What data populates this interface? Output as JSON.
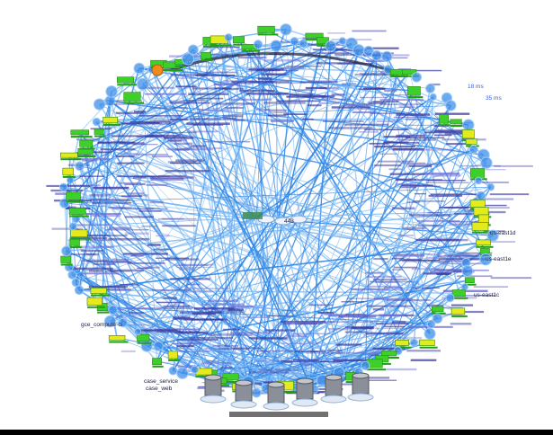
{
  "graph": {
    "node_labels": [
      "us-east1c",
      "us-east1d",
      "us-east1e",
      "gce_compute-ci",
      "case_service",
      "case_web",
      "35 ms",
      "18 ms",
      "443"
    ]
  },
  "colors": {
    "background": "#ffffff",
    "edge": "#2f86e6",
    "edge_light": "#7ab8f5",
    "label": "#2a2aa8",
    "node_green": "#3fcf2a",
    "node_yellow": "#e6ea1c",
    "node_blue": "#3d8ee8",
    "node_orange": "#f08a1a",
    "server_gray": "#8a8f99",
    "bottom_bar": "#000000"
  }
}
